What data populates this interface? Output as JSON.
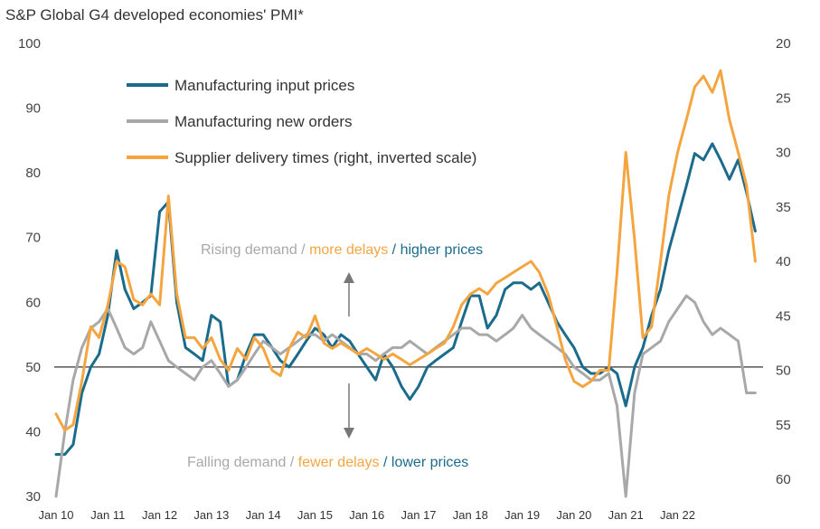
{
  "chart_data": {
    "type": "line",
    "title": "S&P Global G4 developed economies' PMI*",
    "x_tick_labels": [
      "Jan 10",
      "Jan 11",
      "Jan 12",
      "Jan 13",
      "Jan 14",
      "Jan 15",
      "Jan 16",
      "Jan 17",
      "Jan 18",
      "Jan 19",
      "Jan 20",
      "Jan 21",
      "Jan 22"
    ],
    "y_left": {
      "ticks": [
        100,
        90,
        80,
        70,
        60,
        50,
        40,
        30
      ],
      "ylim": [
        30,
        100
      ]
    },
    "y_right": {
      "ticks": [
        20,
        25,
        30,
        35,
        40,
        45,
        50,
        55,
        60
      ],
      "ylim": [
        20,
        62
      ],
      "inverted": true
    },
    "reference_line": 50,
    "legend": {
      "placement": "top-left"
    },
    "series": [
      {
        "name": "Manufacturing input prices",
        "axis": "left",
        "color": "#1b6b8c",
        "points": [
          [
            2010.0,
            36.5
          ],
          [
            2010.17,
            36.5
          ],
          [
            2010.33,
            38
          ],
          [
            2010.5,
            46
          ],
          [
            2010.67,
            50
          ],
          [
            2010.83,
            52
          ],
          [
            2011.0,
            58
          ],
          [
            2011.17,
            68
          ],
          [
            2011.33,
            62
          ],
          [
            2011.5,
            59
          ],
          [
            2011.67,
            60
          ],
          [
            2011.83,
            61
          ],
          [
            2012.0,
            74
          ],
          [
            2012.17,
            75.5
          ],
          [
            2012.33,
            60
          ],
          [
            2012.5,
            53
          ],
          [
            2012.67,
            52
          ],
          [
            2012.83,
            51
          ],
          [
            2013.0,
            58
          ],
          [
            2013.17,
            57
          ],
          [
            2013.33,
            47
          ],
          [
            2013.5,
            48
          ],
          [
            2013.67,
            52
          ],
          [
            2013.83,
            55
          ],
          [
            2014.0,
            55
          ],
          [
            2014.17,
            53
          ],
          [
            2014.33,
            51
          ],
          [
            2014.5,
            50
          ],
          [
            2014.67,
            52
          ],
          [
            2014.83,
            54
          ],
          [
            2015.0,
            56
          ],
          [
            2015.17,
            55
          ],
          [
            2015.33,
            53
          ],
          [
            2015.5,
            55
          ],
          [
            2015.67,
            54
          ],
          [
            2015.83,
            52
          ],
          [
            2016.0,
            50
          ],
          [
            2016.17,
            48
          ],
          [
            2016.33,
            52
          ],
          [
            2016.5,
            50
          ],
          [
            2016.67,
            47
          ],
          [
            2016.83,
            45
          ],
          [
            2017.0,
            47
          ],
          [
            2017.17,
            50
          ],
          [
            2017.33,
            51
          ],
          [
            2017.5,
            52
          ],
          [
            2017.67,
            53
          ],
          [
            2017.83,
            57
          ],
          [
            2018.0,
            61
          ],
          [
            2018.17,
            61
          ],
          [
            2018.33,
            56
          ],
          [
            2018.5,
            58
          ],
          [
            2018.67,
            62
          ],
          [
            2018.83,
            63
          ],
          [
            2019.0,
            63
          ],
          [
            2019.17,
            62
          ],
          [
            2019.33,
            63
          ],
          [
            2019.5,
            60
          ],
          [
            2019.67,
            57
          ],
          [
            2019.83,
            55
          ],
          [
            2020.0,
            53
          ],
          [
            2020.17,
            50
          ],
          [
            2020.33,
            49
          ],
          [
            2020.5,
            49
          ],
          [
            2020.67,
            50
          ],
          [
            2020.83,
            49
          ],
          [
            2021.0,
            44
          ],
          [
            2021.17,
            50
          ],
          [
            2021.33,
            53
          ],
          [
            2021.5,
            58
          ],
          [
            2021.67,
            62
          ],
          [
            2021.83,
            68
          ],
          [
            2022.0,
            73
          ],
          [
            2022.17,
            78
          ],
          [
            2022.33,
            83
          ],
          [
            2022.5,
            82
          ],
          [
            2022.67,
            84.5
          ],
          [
            2022.83,
            82
          ],
          [
            2023.0,
            79
          ],
          [
            2023.17,
            82
          ],
          [
            2023.33,
            77
          ],
          [
            2023.5,
            71
          ]
        ]
      },
      {
        "name": "Manufacturing new orders",
        "axis": "left",
        "color": "#a8a8a8",
        "points": [
          [
            2010.0,
            30
          ],
          [
            2010.17,
            40
          ],
          [
            2010.33,
            48
          ],
          [
            2010.5,
            53
          ],
          [
            2010.67,
            56
          ],
          [
            2010.83,
            57
          ],
          [
            2011.0,
            59
          ],
          [
            2011.17,
            56
          ],
          [
            2011.33,
            53
          ],
          [
            2011.5,
            52
          ],
          [
            2011.67,
            53
          ],
          [
            2011.83,
            57
          ],
          [
            2012.0,
            54
          ],
          [
            2012.17,
            51
          ],
          [
            2012.33,
            50
          ],
          [
            2012.5,
            49
          ],
          [
            2012.67,
            48
          ],
          [
            2012.83,
            50
          ],
          [
            2013.0,
            51
          ],
          [
            2013.17,
            49
          ],
          [
            2013.33,
            47
          ],
          [
            2013.5,
            48
          ],
          [
            2013.67,
            50
          ],
          [
            2013.83,
            52
          ],
          [
            2014.0,
            54
          ],
          [
            2014.17,
            53
          ],
          [
            2014.33,
            52
          ],
          [
            2014.5,
            53
          ],
          [
            2014.67,
            54
          ],
          [
            2014.83,
            55
          ],
          [
            2015.0,
            55
          ],
          [
            2015.17,
            54
          ],
          [
            2015.33,
            55
          ],
          [
            2015.5,
            54
          ],
          [
            2015.67,
            53
          ],
          [
            2015.83,
            52
          ],
          [
            2016.0,
            52
          ],
          [
            2016.17,
            51
          ],
          [
            2016.33,
            52
          ],
          [
            2016.5,
            53
          ],
          [
            2016.67,
            53
          ],
          [
            2016.83,
            54
          ],
          [
            2017.0,
            53
          ],
          [
            2017.17,
            52
          ],
          [
            2017.33,
            53
          ],
          [
            2017.5,
            54
          ],
          [
            2017.67,
            55
          ],
          [
            2017.83,
            56
          ],
          [
            2018.0,
            56
          ],
          [
            2018.17,
            55
          ],
          [
            2018.33,
            55
          ],
          [
            2018.5,
            54
          ],
          [
            2018.67,
            55
          ],
          [
            2018.83,
            56
          ],
          [
            2019.0,
            58
          ],
          [
            2019.17,
            56
          ],
          [
            2019.33,
            55
          ],
          [
            2019.5,
            54
          ],
          [
            2019.67,
            53
          ],
          [
            2019.83,
            52
          ],
          [
            2020.0,
            50
          ],
          [
            2020.17,
            49
          ],
          [
            2020.33,
            48
          ],
          [
            2020.5,
            48
          ],
          [
            2020.67,
            49
          ],
          [
            2020.83,
            44
          ],
          [
            2021.0,
            30
          ],
          [
            2021.17,
            46
          ],
          [
            2021.33,
            52
          ],
          [
            2021.5,
            53
          ],
          [
            2021.67,
            54
          ],
          [
            2021.83,
            57
          ],
          [
            2022.0,
            59
          ],
          [
            2022.17,
            61
          ],
          [
            2022.33,
            60
          ],
          [
            2022.5,
            57
          ],
          [
            2022.67,
            55
          ],
          [
            2022.83,
            56
          ],
          [
            2023.0,
            55
          ],
          [
            2023.17,
            54
          ],
          [
            2023.33,
            46
          ],
          [
            2023.5,
            46
          ]
        ]
      },
      {
        "name": "Supplier delivery times (right, inverted scale)",
        "axis": "right",
        "color": "#f5a540",
        "points": [
          [
            2010.0,
            54
          ],
          [
            2010.17,
            55.5
          ],
          [
            2010.33,
            55
          ],
          [
            2010.5,
            51
          ],
          [
            2010.67,
            46
          ],
          [
            2010.83,
            47
          ],
          [
            2011.0,
            44
          ],
          [
            2011.17,
            40
          ],
          [
            2011.33,
            40.5
          ],
          [
            2011.5,
            43.5
          ],
          [
            2011.67,
            44
          ],
          [
            2011.83,
            43
          ],
          [
            2012.0,
            44
          ],
          [
            2012.17,
            34
          ],
          [
            2012.33,
            43
          ],
          [
            2012.5,
            47
          ],
          [
            2012.67,
            47
          ],
          [
            2012.83,
            48
          ],
          [
            2013.0,
            47
          ],
          [
            2013.17,
            49
          ],
          [
            2013.33,
            50
          ],
          [
            2013.5,
            48
          ],
          [
            2013.67,
            49
          ],
          [
            2013.83,
            47
          ],
          [
            2014.0,
            48
          ],
          [
            2014.17,
            50
          ],
          [
            2014.33,
            50.5
          ],
          [
            2014.5,
            48
          ],
          [
            2014.67,
            46.5
          ],
          [
            2014.83,
            47
          ],
          [
            2015.0,
            45
          ],
          [
            2015.17,
            47.5
          ],
          [
            2015.33,
            48
          ],
          [
            2015.5,
            47.5
          ],
          [
            2015.67,
            48
          ],
          [
            2015.83,
            48.5
          ],
          [
            2016.0,
            48
          ],
          [
            2016.17,
            48.5
          ],
          [
            2016.33,
            49
          ],
          [
            2016.5,
            48.5
          ],
          [
            2016.67,
            49
          ],
          [
            2016.83,
            49.5
          ],
          [
            2017.0,
            49
          ],
          [
            2017.17,
            48.5
          ],
          [
            2017.33,
            48
          ],
          [
            2017.5,
            47.5
          ],
          [
            2017.67,
            46
          ],
          [
            2017.83,
            44
          ],
          [
            2018.0,
            43
          ],
          [
            2018.17,
            42.5
          ],
          [
            2018.33,
            43
          ],
          [
            2018.5,
            42
          ],
          [
            2018.67,
            41.5
          ],
          [
            2018.83,
            41
          ],
          [
            2019.0,
            40.5
          ],
          [
            2019.17,
            40
          ],
          [
            2019.33,
            41
          ],
          [
            2019.5,
            43
          ],
          [
            2019.67,
            46
          ],
          [
            2019.83,
            49
          ],
          [
            2020.0,
            51
          ],
          [
            2020.17,
            51.5
          ],
          [
            2020.33,
            51
          ],
          [
            2020.5,
            50
          ],
          [
            2020.67,
            50
          ],
          [
            2020.83,
            41
          ],
          [
            2021.0,
            30
          ],
          [
            2021.17,
            38
          ],
          [
            2021.33,
            47
          ],
          [
            2021.5,
            46
          ],
          [
            2021.67,
            40
          ],
          [
            2021.83,
            34
          ],
          [
            2022.0,
            30
          ],
          [
            2022.17,
            27
          ],
          [
            2022.33,
            24
          ],
          [
            2022.5,
            23
          ],
          [
            2022.67,
            24.5
          ],
          [
            2022.83,
            22.5
          ],
          [
            2023.0,
            27
          ],
          [
            2023.17,
            30
          ],
          [
            2023.33,
            33
          ],
          [
            2023.5,
            40
          ]
        ]
      }
    ],
    "annotations": {
      "top": [
        {
          "text": "Rising demand / ",
          "color": "#a8a8a8"
        },
        {
          "text": "more delays",
          "color": "#f5a540"
        },
        {
          "text": " / ",
          "color": "#1b6b8c"
        },
        {
          "text": "higher prices",
          "color": "#1b6b8c"
        }
      ],
      "bottom": [
        {
          "text": "Falling demand / ",
          "color": "#a8a8a8"
        },
        {
          "text": "fewer delays",
          "color": "#f5a540"
        },
        {
          "text": " / ",
          "color": "#1b6b8c"
        },
        {
          "text": "lower prices",
          "color": "#1b6b8c"
        }
      ]
    }
  }
}
